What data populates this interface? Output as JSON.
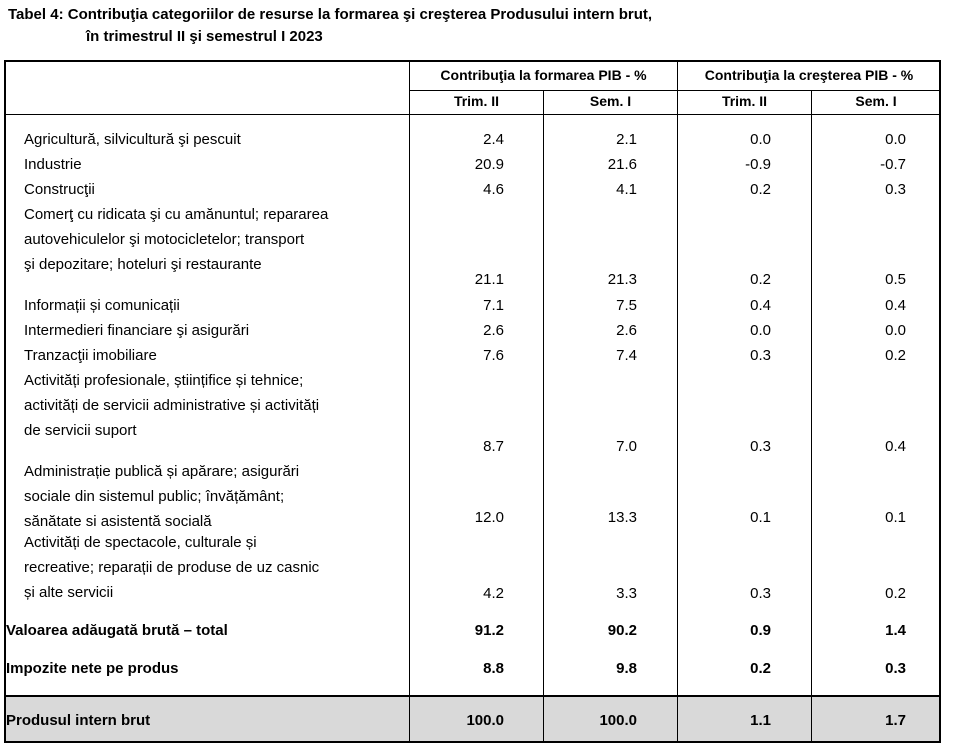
{
  "title": {
    "line1": "Tabel 4: Contribuţia categoriilor de resurse la formarea şi creşterea Produsului intern brut,",
    "line2": "în trimestrul II şi semestrul I 2023"
  },
  "headers": {
    "group1": "Contribuţia la formarea PIB - %",
    "group2": "Contribuţia la creşterea PIB - %",
    "sub": [
      "Trim. II",
      "Sem. I",
      "Trim. II",
      "Sem. I"
    ]
  },
  "rows": [
    {
      "label": [
        "Agricultură, silvicultură şi pescuit"
      ],
      "values": [
        "2.4",
        "2.1",
        "0.0",
        "0.0"
      ]
    },
    {
      "label": [
        "Industrie"
      ],
      "values": [
        "20.9",
        "21.6",
        "-0.9",
        "-0.7"
      ]
    },
    {
      "label": [
        "Construcţii"
      ],
      "values": [
        "4.6",
        "4.1",
        "0.2",
        "0.3"
      ]
    },
    {
      "label": [
        "Comerţ cu ridicata şi cu amănuntul; repararea",
        "autovehiculelor şi motocicletelor;  transport",
        "şi depozitare; hoteluri şi restaurante"
      ],
      "values": [
        "21.1",
        "21.3",
        "0.2",
        "0.5"
      ]
    },
    {
      "label": [
        "Informații și comunicații"
      ],
      "values": [
        "7.1",
        "7.5",
        "0.4",
        "0.4"
      ]
    },
    {
      "label": [
        "Intermedieri financiare şi asigurări"
      ],
      "values": [
        "2.6",
        "2.6",
        "0.0",
        "0.0"
      ]
    },
    {
      "label": [
        "Tranzacţii imobiliare"
      ],
      "values": [
        "7.6",
        "7.4",
        "0.3",
        "0.2"
      ]
    },
    {
      "label": [
        "Activități profesionale, științifice și tehnice;",
        "activități de servicii administrative și activități",
        "de servicii suport"
      ],
      "values": [
        "8.7",
        "7.0",
        "0.3",
        "0.4"
      ]
    },
    {
      "label": [
        "Administrație publică și apărare; asigurări",
        "sociale din sistemul public; învățământ;",
        "sănătate si asistentă socială"
      ],
      "values": [
        "12.0",
        "13.3",
        "0.1",
        "0.1"
      ]
    },
    {
      "label": [
        "Activități de spectacole, culturale și",
        "recreative; reparații de produse de uz casnic",
        "și alte servicii"
      ],
      "values": [
        "4.2",
        "3.3",
        "0.3",
        "0.2"
      ]
    }
  ],
  "summary": [
    {
      "label": "Valoarea adăugată brută – total",
      "values": [
        "91.2",
        "90.2",
        "0.9",
        "1.4"
      ]
    },
    {
      "label": "Impozite nete pe produs",
      "values": [
        "8.8",
        "9.8",
        "0.2",
        "0.3"
      ]
    }
  ],
  "total": {
    "label": "Produsul intern brut",
    "values": [
      "100.0",
      "100.0",
      "1.1",
      "1.7"
    ]
  }
}
